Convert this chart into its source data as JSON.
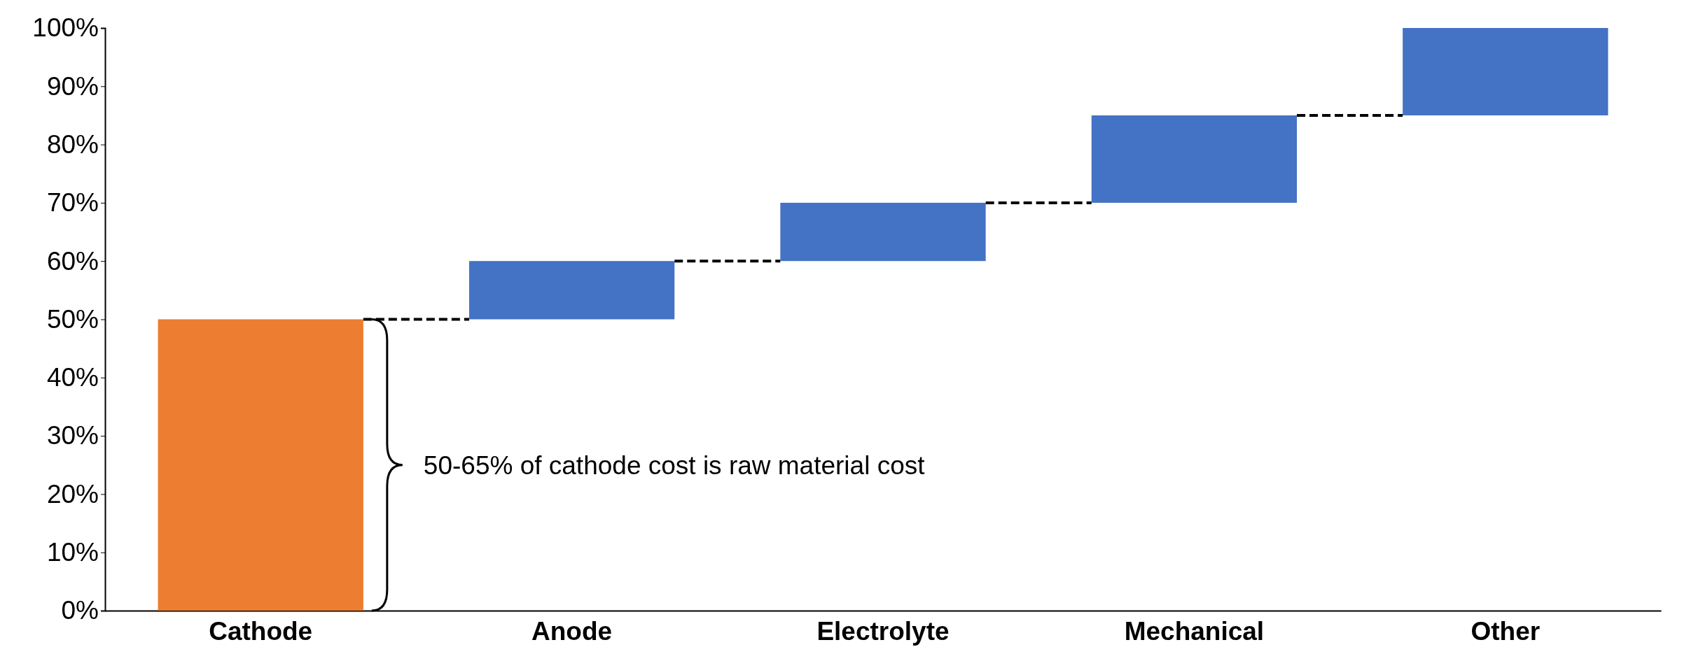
{
  "chart_data": {
    "type": "bar",
    "categories": [
      "Cathode",
      "Anode",
      "Electrolyte",
      "Mechanical",
      "Other"
    ],
    "values": [
      50,
      10,
      10,
      15,
      15
    ],
    "base": [
      0,
      50,
      60,
      70,
      85
    ],
    "colors": [
      "#ed7d31",
      "#4472c4",
      "#4472c4",
      "#4472c4",
      "#4472c4"
    ],
    "ylim": [
      0,
      100
    ],
    "yticks": [
      {
        "value": 0,
        "label": "0%"
      },
      {
        "value": 10,
        "label": "10%"
      },
      {
        "value": 20,
        "label": "20%"
      },
      {
        "value": 30,
        "label": "30%"
      },
      {
        "value": 40,
        "label": "40%"
      },
      {
        "value": 50,
        "label": "50%"
      },
      {
        "value": 60,
        "label": "60%"
      },
      {
        "value": 70,
        "label": "70%"
      },
      {
        "value": 80,
        "label": "80%"
      },
      {
        "value": 90,
        "label": "90%"
      },
      {
        "value": 100,
        "label": "100%"
      }
    ],
    "grid": false,
    "annotations": [
      "50-65% of cathode cost is raw material cost"
    ]
  }
}
